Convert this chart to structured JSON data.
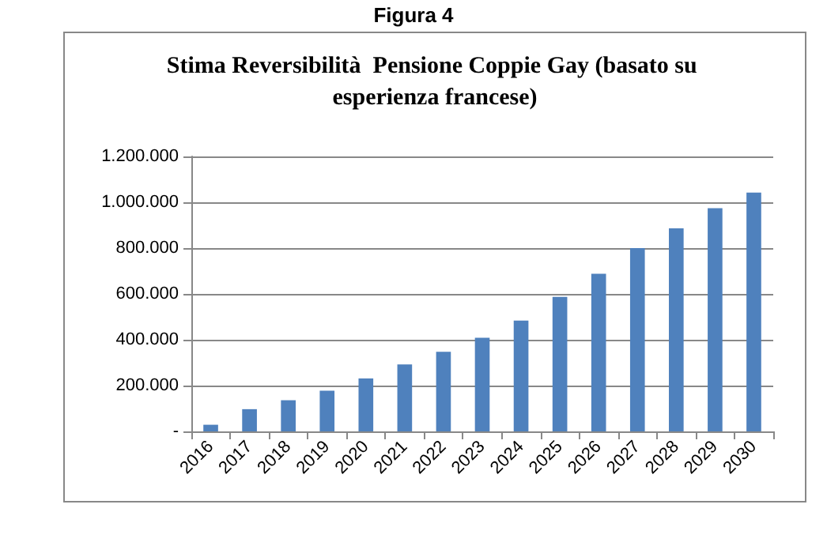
{
  "chart_data": {
    "type": "bar",
    "title": "Stima Reversibilità  Pensione Coppie Gay (basato su esperienza francese)",
    "annotations": [
      "Figura 4"
    ],
    "categories": [
      "2016",
      "2017",
      "2018",
      "2019",
      "2020",
      "2021",
      "2022",
      "2023",
      "2024",
      "2025",
      "2026",
      "2027",
      "2028",
      "2029",
      "2030"
    ],
    "values": [
      29000,
      97000,
      136000,
      178000,
      231000,
      292000,
      347000,
      409000,
      484000,
      587000,
      688000,
      800000,
      886000,
      974000,
      1042000
    ],
    "color": "#4f81bd",
    "ylim": [
      0,
      1200000
    ],
    "yticks": [
      {
        "value": 0,
        "label": "-"
      },
      {
        "value": 200000,
        "label": "200.000"
      },
      {
        "value": 400000,
        "label": "400.000"
      },
      {
        "value": 600000,
        "label": "600.000"
      },
      {
        "value": 800000,
        "label": "800.000"
      },
      {
        "value": 1000000,
        "label": "1.000.000"
      },
      {
        "value": 1200000,
        "label": "1.200.000"
      }
    ],
    "grid": "y"
  }
}
